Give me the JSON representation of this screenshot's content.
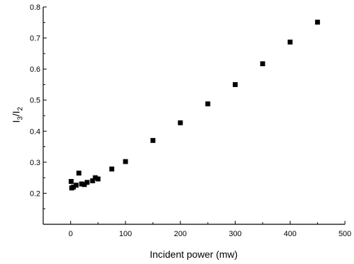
{
  "chart_data": {
    "type": "scatter",
    "title": "",
    "xlabel": "Incident power  (mw)",
    "ylabel": {
      "main": "I",
      "sub1": "3",
      "slash": "/",
      "main2": "I",
      "sub2": "2"
    },
    "xlim": [
      -50,
      500
    ],
    "ylim": [
      0.1,
      0.8
    ],
    "xticks": [
      0,
      100,
      200,
      300,
      400,
      500
    ],
    "yticks": [
      0.2,
      0.3,
      0.4,
      0.5,
      0.6,
      0.7,
      0.8
    ],
    "ytick_labels": [
      "0.2",
      "0.3",
      "0.4",
      "0.5",
      "0.6",
      "0.7",
      "0.8"
    ],
    "grid": false,
    "marker": "square",
    "color": "#000000",
    "series": [
      {
        "points": [
          [
            1,
            0.238
          ],
          [
            2,
            0.217
          ],
          [
            5,
            0.22
          ],
          [
            10,
            0.226
          ],
          [
            15,
            0.265
          ],
          [
            20,
            0.23
          ],
          [
            25,
            0.228
          ],
          [
            30,
            0.235
          ],
          [
            40,
            0.24
          ],
          [
            45,
            0.25
          ],
          [
            50,
            0.246
          ],
          [
            75,
            0.278
          ],
          [
            100,
            0.302
          ],
          [
            150,
            0.37
          ],
          [
            200,
            0.427
          ],
          [
            250,
            0.488
          ],
          [
            300,
            0.55
          ],
          [
            350,
            0.617
          ],
          [
            400,
            0.687
          ],
          [
            450,
            0.751
          ]
        ]
      }
    ]
  }
}
